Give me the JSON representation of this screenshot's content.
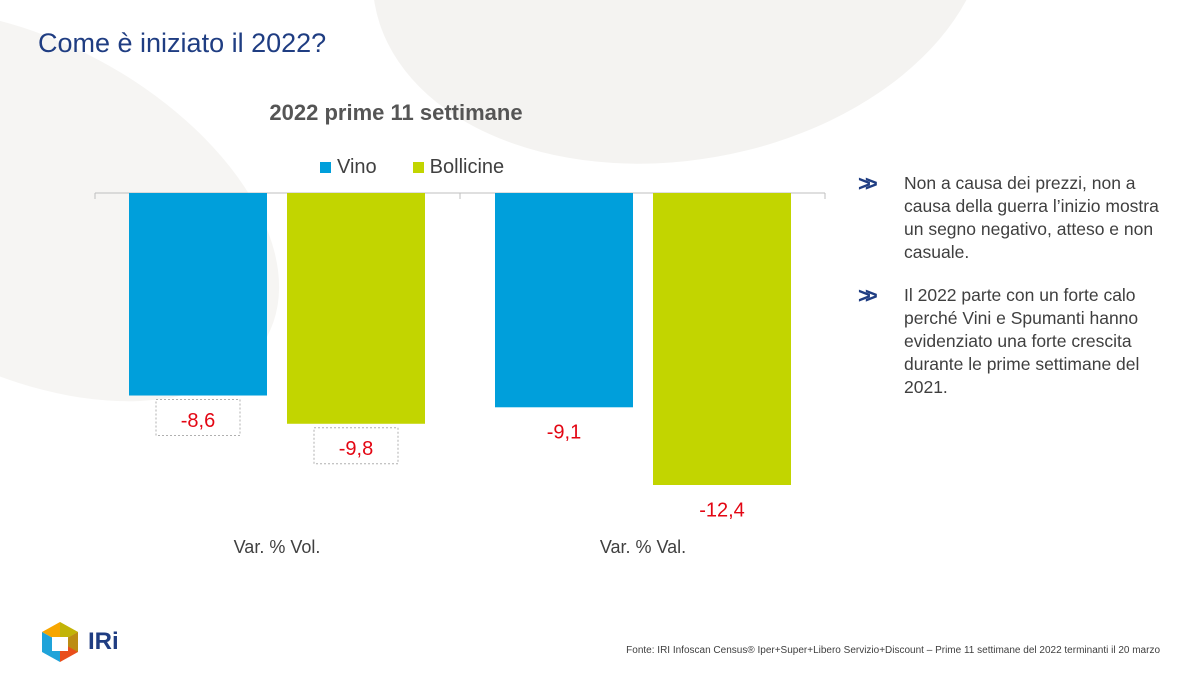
{
  "page": {
    "title": "Come è iniziato il 2022?",
    "source": "Fonte: IRI  Infoscan Census®  Iper+Super+Libero Servizio+Discount – Prime 11 settimane del 2022 terminanti il 20 marzo",
    "logo_text": "IRi"
  },
  "bullets": [
    {
      "icon": "double-chevron-right-icon",
      "text": "Non a causa dei prezzi, non a causa della guerra l’inizio mostra un segno negativo, atteso e non casuale."
    },
    {
      "icon": "double-chevron-right-icon",
      "text": "Il 2022 parte con un forte calo perché Vini e Spumanti hanno evidenziato una forte crescita durante le prime settimane del 2021."
    }
  ],
  "colors": {
    "title": "#1f3d82",
    "vino": "#009fdb",
    "bollicine": "#c2d500",
    "negative_label": "#e30613"
  },
  "chart_data": {
    "type": "bar",
    "title": "2022 prime 11 settimane",
    "categories": [
      "Var. % Vol.",
      "Var. % Val."
    ],
    "series": [
      {
        "name": "Vino",
        "color": "#009fdb",
        "values": [
          -8.6,
          -9.1
        ],
        "labels": [
          "-8,6",
          "-9,1"
        ]
      },
      {
        "name": "Bollicine",
        "color": "#c2d500",
        "values": [
          -9.8,
          -12.4
        ],
        "labels": [
          "-9,8",
          "-12,4"
        ]
      }
    ],
    "ylim": [
      -12.4,
      0
    ],
    "grid": false,
    "legend": "top",
    "boxed_labels": [
      true,
      false
    ]
  }
}
